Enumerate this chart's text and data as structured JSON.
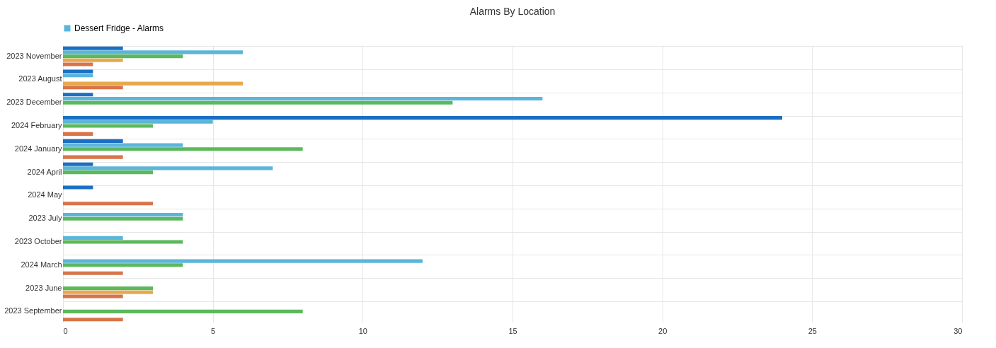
{
  "chart_data": {
    "type": "bar",
    "title": "Alarms By Location",
    "orientation": "horizontal",
    "categories": [
      "2023 November",
      "2023 August",
      "2023 December",
      "2024 February",
      "2024 January",
      "2024 April",
      "2024 May",
      "2023 July",
      "2023 October",
      "2024 March",
      "2023 June",
      "2023 September"
    ],
    "series": [
      {
        "color": "#1a6fc4",
        "values": [
          2,
          1,
          1,
          24,
          2,
          1,
          1,
          null,
          null,
          null,
          null,
          null
        ]
      },
      {
        "name": "Dessert Fridge - Alarms",
        "color": "#5bb5d9",
        "values": [
          6,
          1,
          16,
          5,
          4,
          7,
          null,
          4,
          2,
          12,
          null,
          null
        ]
      },
      {
        "color": "#5cb85c",
        "values": [
          4,
          null,
          13,
          3,
          8,
          3,
          null,
          4,
          4,
          4,
          3,
          8
        ]
      },
      {
        "color": "#e8a94c",
        "values": [
          2,
          6,
          null,
          null,
          null,
          null,
          null,
          null,
          null,
          null,
          3,
          null
        ]
      },
      {
        "color": "#d9744a",
        "values": [
          1,
          2,
          null,
          1,
          2,
          null,
          3,
          null,
          null,
          2,
          2,
          2
        ]
      }
    ],
    "xlim": [
      0,
      30
    ],
    "xticks": [
      0,
      5,
      10,
      15,
      20,
      25,
      30
    ],
    "grid": true,
    "legend": "top"
  }
}
